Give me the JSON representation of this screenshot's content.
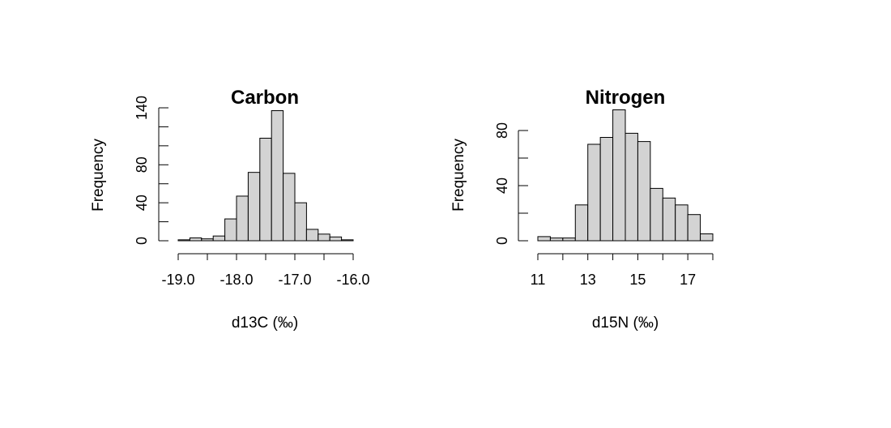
{
  "chart_data": [
    {
      "type": "bar",
      "title": "Carbon",
      "xlabel": "d13C (‰)",
      "ylabel": "Frequency",
      "bin_edges": [
        -19.0,
        -18.8,
        -18.6,
        -18.4,
        -18.2,
        -18.0,
        -17.8,
        -17.6,
        -17.4,
        -17.2,
        -17.0,
        -16.8,
        -16.6,
        -16.4,
        -16.2,
        -16.0
      ],
      "values": [
        1,
        3,
        2,
        5,
        23,
        47,
        72,
        108,
        137,
        71,
        40,
        12,
        7,
        4,
        1
      ],
      "xlim": [
        -19.0,
        -16.0
      ],
      "ylim": [
        0,
        140
      ],
      "x_ticks": [
        -19.0,
        -18.0,
        -17.0,
        -16.0
      ],
      "x_tick_labels": [
        "-19.0",
        "-18.0",
        "-17.0",
        "-16.0"
      ],
      "y_ticks": [
        0,
        40,
        80,
        140
      ],
      "y_tick_labels": [
        "0",
        "40",
        "80",
        "140"
      ],
      "y_minor_ticks": [
        0,
        20,
        40,
        60,
        80,
        100,
        120,
        140
      ]
    },
    {
      "type": "bar",
      "title": "Nitrogen",
      "xlabel": "d15N (‰)",
      "ylabel": "Frequency",
      "bin_edges": [
        11.0,
        11.5,
        12.0,
        12.5,
        13.0,
        13.5,
        14.0,
        14.5,
        15.0,
        15.5,
        16.0,
        16.5,
        17.0,
        17.5,
        18.0
      ],
      "values": [
        3,
        2,
        2,
        26,
        70,
        75,
        95,
        78,
        72,
        38,
        31,
        26,
        19,
        5
      ],
      "xlim": [
        11,
        18
      ],
      "ylim": [
        0,
        80
      ],
      "x_ticks": [
        11,
        13,
        15,
        17
      ],
      "x_tick_labels": [
        "11",
        "13",
        "15",
        "17"
      ],
      "x_minor_ticks": [
        11,
        12,
        13,
        14,
        15,
        16,
        17,
        18
      ],
      "y_ticks": [
        0,
        40,
        80
      ],
      "y_tick_labels": [
        "0",
        "40",
        "80"
      ],
      "y_minor_ticks": [
        0,
        20,
        40,
        60,
        80
      ]
    }
  ],
  "colors": {
    "bar_fill": "#d3d3d3",
    "bar_stroke": "#000000",
    "axis": "#000000"
  }
}
